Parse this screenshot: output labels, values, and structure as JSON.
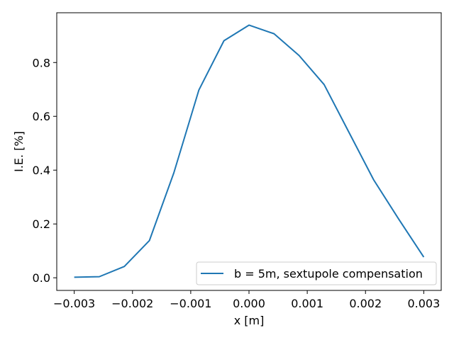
{
  "chart_data": {
    "type": "line",
    "title": "",
    "xlabel": "x [m]",
    "ylabel": "I.E. [%]",
    "xlim": [
      -0.0033,
      0.0033
    ],
    "ylim": [
      -0.047,
      0.985
    ],
    "xticks": [
      -0.003,
      -0.002,
      -0.001,
      0.0,
      0.001,
      0.002,
      0.003
    ],
    "xtick_labels": [
      "−0.003",
      "−0.002",
      "−0.001",
      "0.000",
      "0.001",
      "0.002",
      "0.003"
    ],
    "yticks": [
      0.0,
      0.2,
      0.4,
      0.6,
      0.8
    ],
    "ytick_labels": [
      "0.0",
      "0.2",
      "0.4",
      "0.6",
      "0.8"
    ],
    "grid": false,
    "legend_position": "bottom-right",
    "series": [
      {
        "name": "b = 5m, sextupole compensation",
        "color": "#1f77b4",
        "x": [
          -0.003,
          -0.00257,
          -0.00214,
          -0.00171,
          -0.00129,
          -0.00086,
          -0.00043,
          0.0,
          0.00043,
          0.00086,
          0.00129,
          0.00171,
          0.00214,
          0.00257,
          0.003
        ],
        "y": [
          0.002,
          0.004,
          0.042,
          0.138,
          0.39,
          0.698,
          0.881,
          0.939,
          0.907,
          0.826,
          0.718,
          0.543,
          0.364,
          0.218,
          0.077
        ]
      }
    ]
  }
}
